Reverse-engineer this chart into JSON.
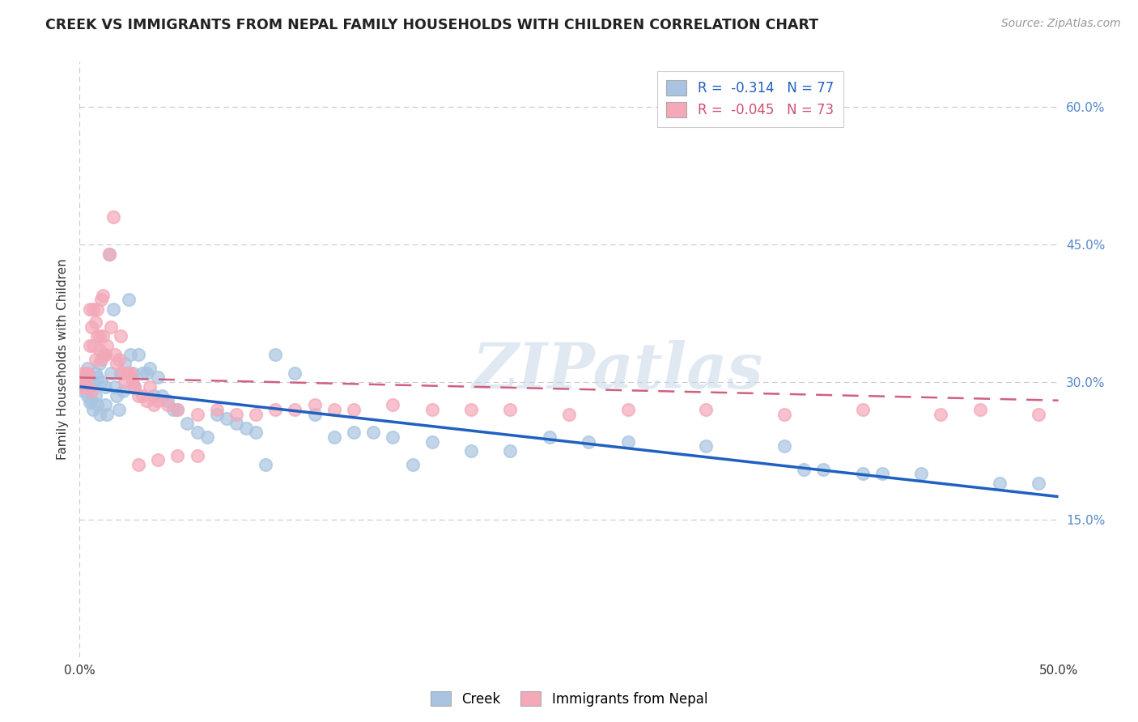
{
  "title": "CREEK VS IMMIGRANTS FROM NEPAL FAMILY HOUSEHOLDS WITH CHILDREN CORRELATION CHART",
  "source": "Source: ZipAtlas.com",
  "ylabel": "Family Households with Children",
  "xlim": [
    0.0,
    0.5
  ],
  "ylim": [
    0.0,
    0.65
  ],
  "xticks": [
    0.0,
    0.1,
    0.2,
    0.3,
    0.4,
    0.5
  ],
  "xticklabels": [
    "0.0%",
    "",
    "",
    "",
    "",
    "50.0%"
  ],
  "yticks_right": [
    0.15,
    0.3,
    0.45,
    0.6
  ],
  "yticklabels_right": [
    "15.0%",
    "30.0%",
    "45.0%",
    "60.0%"
  ],
  "creek_color": "#a8c4e0",
  "nepal_color": "#f4a8b8",
  "creek_line_color": "#2060c0",
  "nepal_line_color": "#d06080",
  "legend_creek_label": "R =  -0.314   N = 77",
  "legend_nepal_label": "R =  -0.045   N = 73",
  "legend_title_creek": "Creek",
  "legend_title_nepal": "Immigrants from Nepal",
  "watermark": "ZIPatlas",
  "background_color": "#ffffff",
  "grid_color": "#c8c8d8",
  "creek_scatter_x": [
    0.002,
    0.003,
    0.003,
    0.004,
    0.004,
    0.005,
    0.005,
    0.006,
    0.006,
    0.007,
    0.007,
    0.008,
    0.008,
    0.009,
    0.009,
    0.01,
    0.01,
    0.011,
    0.012,
    0.013,
    0.013,
    0.014,
    0.015,
    0.016,
    0.017,
    0.018,
    0.019,
    0.02,
    0.021,
    0.022,
    0.023,
    0.025,
    0.026,
    0.027,
    0.028,
    0.03,
    0.032,
    0.034,
    0.036,
    0.038,
    0.04,
    0.042,
    0.045,
    0.048,
    0.05,
    0.055,
    0.06,
    0.065,
    0.07,
    0.075,
    0.08,
    0.085,
    0.09,
    0.095,
    0.1,
    0.11,
    0.12,
    0.13,
    0.14,
    0.15,
    0.16,
    0.17,
    0.18,
    0.2,
    0.22,
    0.24,
    0.26,
    0.28,
    0.32,
    0.36,
    0.37,
    0.38,
    0.4,
    0.41,
    0.43,
    0.47,
    0.49
  ],
  "creek_scatter_y": [
    0.29,
    0.295,
    0.305,
    0.285,
    0.315,
    0.278,
    0.298,
    0.28,
    0.295,
    0.3,
    0.27,
    0.31,
    0.285,
    0.275,
    0.305,
    0.265,
    0.32,
    0.3,
    0.33,
    0.275,
    0.295,
    0.265,
    0.44,
    0.31,
    0.38,
    0.295,
    0.285,
    0.27,
    0.31,
    0.29,
    0.32,
    0.39,
    0.33,
    0.31,
    0.295,
    0.33,
    0.31,
    0.31,
    0.315,
    0.285,
    0.305,
    0.285,
    0.28,
    0.27,
    0.27,
    0.255,
    0.245,
    0.24,
    0.265,
    0.26,
    0.255,
    0.25,
    0.245,
    0.21,
    0.33,
    0.31,
    0.265,
    0.24,
    0.245,
    0.245,
    0.24,
    0.21,
    0.235,
    0.225,
    0.225,
    0.24,
    0.235,
    0.235,
    0.23,
    0.23,
    0.205,
    0.205,
    0.2,
    0.2,
    0.2,
    0.19,
    0.19
  ],
  "nepal_scatter_x": [
    0.001,
    0.002,
    0.002,
    0.003,
    0.003,
    0.004,
    0.004,
    0.005,
    0.005,
    0.006,
    0.006,
    0.007,
    0.007,
    0.008,
    0.008,
    0.009,
    0.009,
    0.01,
    0.01,
    0.011,
    0.011,
    0.012,
    0.012,
    0.013,
    0.013,
    0.014,
    0.015,
    0.016,
    0.017,
    0.018,
    0.019,
    0.02,
    0.021,
    0.022,
    0.023,
    0.024,
    0.025,
    0.026,
    0.027,
    0.028,
    0.03,
    0.032,
    0.034,
    0.036,
    0.038,
    0.04,
    0.045,
    0.05,
    0.06,
    0.07,
    0.08,
    0.09,
    0.1,
    0.11,
    0.12,
    0.13,
    0.14,
    0.16,
    0.18,
    0.2,
    0.22,
    0.25,
    0.28,
    0.32,
    0.36,
    0.4,
    0.44,
    0.46,
    0.49,
    0.03,
    0.04,
    0.05,
    0.06
  ],
  "nepal_scatter_y": [
    0.295,
    0.295,
    0.31,
    0.3,
    0.31,
    0.295,
    0.31,
    0.38,
    0.34,
    0.29,
    0.36,
    0.38,
    0.34,
    0.365,
    0.325,
    0.35,
    0.38,
    0.335,
    0.35,
    0.325,
    0.39,
    0.35,
    0.395,
    0.33,
    0.33,
    0.34,
    0.44,
    0.36,
    0.48,
    0.33,
    0.32,
    0.325,
    0.35,
    0.31,
    0.3,
    0.31,
    0.31,
    0.31,
    0.3,
    0.295,
    0.285,
    0.285,
    0.28,
    0.295,
    0.275,
    0.28,
    0.275,
    0.27,
    0.265,
    0.27,
    0.265,
    0.265,
    0.27,
    0.27,
    0.275,
    0.27,
    0.27,
    0.275,
    0.27,
    0.27,
    0.27,
    0.265,
    0.27,
    0.27,
    0.265,
    0.27,
    0.265,
    0.27,
    0.265,
    0.21,
    0.215,
    0.22,
    0.22
  ],
  "creek_trend_x": [
    0.0,
    0.5
  ],
  "creek_trend_y": [
    0.295,
    0.175
  ],
  "nepal_trend_x": [
    0.0,
    0.5
  ],
  "nepal_trend_y": [
    0.305,
    0.28
  ]
}
